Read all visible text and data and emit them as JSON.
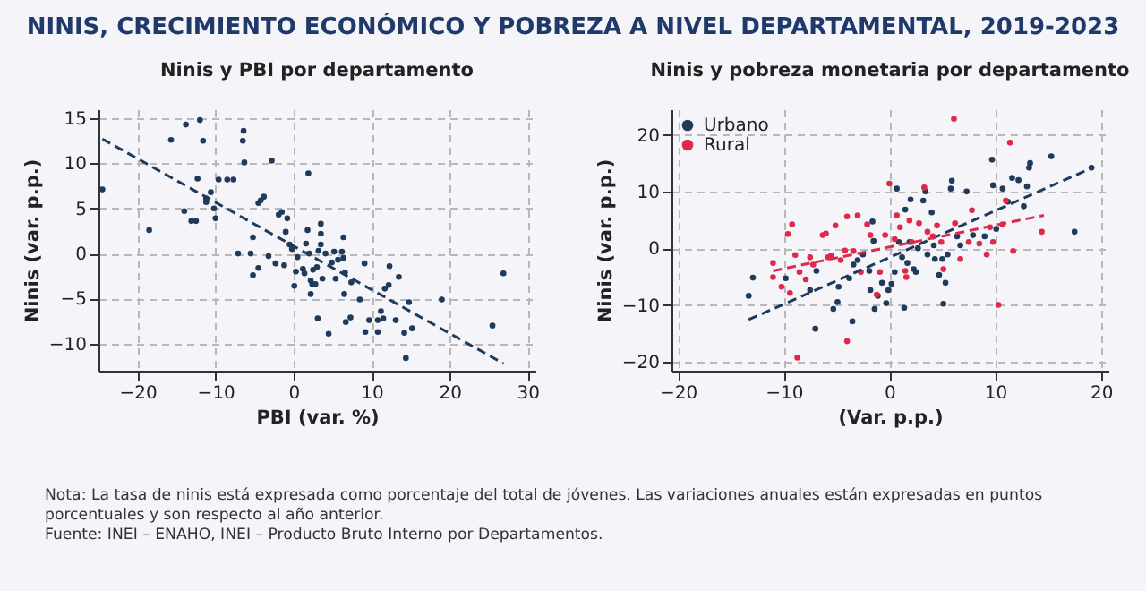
{
  "chart_data": [
    {
      "type": "other",
      "title": "NINIS, CRECIMIENTO ECONÓMICO Y POBREZA A NIVEL DEPARTAMENTAL, 2019-2023"
    },
    {
      "type": "scatter",
      "title": "Ninis y PBI por departamento",
      "xlabel": "PBI (var. %)",
      "ylabel": "Ninis (var. p.p.)",
      "xlim": [
        -25,
        31
      ],
      "ylim": [
        -13,
        16
      ],
      "xticks": [
        -20,
        -10,
        0,
        10,
        20,
        30
      ],
      "yticks": [
        -10,
        -5,
        0,
        5,
        10,
        15
      ],
      "grid": true,
      "legend": false,
      "series": [
        {
          "type": "scatter",
          "marker": "circle",
          "color": "#1f3a5a",
          "x": [
            -24.5,
            -18.5,
            -15.7,
            -13.8,
            -12.0,
            -11.6,
            -12.3,
            -14.0,
            -13.1,
            -12.5,
            -11.2,
            -11.2,
            -10.6,
            -10.2,
            -10.0,
            -9.6,
            -8.5,
            -7.7,
            -7.1,
            -6.4,
            -6.5,
            -6.3,
            -5.5,
            -5.2,
            -5.2,
            -4.5,
            -4.2,
            -3.8,
            -4.5,
            -3.2,
            -2.8,
            -2.3,
            -1.9,
            -1.5,
            -1.2,
            -0.8,
            -1.0,
            -0.5,
            -0.2,
            0.1,
            0.3,
            0.5,
            1.2,
            1.4,
            1.6,
            1.8,
            1.9,
            2.0,
            2.2,
            2.2,
            2.4,
            2.5,
            2.8,
            3.0,
            3.1,
            3.2,
            3.5,
            3.5,
            3.5,
            3.7,
            4.1,
            4.5,
            4.9,
            5.2,
            5.4,
            5.7,
            6.2,
            6.4,
            6.4,
            6.5,
            6.6,
            6.7,
            7.3,
            7.4,
            8.5,
            9.1,
            9.2,
            9.7,
            10.8,
            10.8,
            11.2,
            11.5,
            11.7,
            12.2,
            12.3,
            13.1,
            13.5,
            14.2,
            14.4,
            14.8,
            15.2,
            19.0,
            25.5,
            26.9
          ],
          "values": [
            7.1,
            2.6,
            12.6,
            14.3,
            14.8,
            12.5,
            8.3,
            4.7,
            3.6,
            3.6,
            6.1,
            5.7,
            6.8,
            5.0,
            3.9,
            8.2,
            8.2,
            8.2,
            0,
            13.6,
            12.5,
            10.1,
            0,
            1.8,
            -2.4,
            5.6,
            5.9,
            6.3,
            -1.6,
            -0.3,
            10.3,
            -1.1,
            4.3,
            4.6,
            -1.3,
            3.9,
            2.4,
            1.0,
            0.5,
            -3.6,
            -2.0,
            -0.4,
            -1.7,
            -2.2,
            1.1,
            2.6,
            8.9,
            0,
            -3.0,
            -4.5,
            -3.4,
            -1.8,
            -3.4,
            -1.5,
            -7.2,
            0.3,
            3.3,
            2.2,
            1.0,
            -2.8,
            0,
            -8.9,
            -1.0,
            0.2,
            -2.8,
            -0.7,
            0.2,
            1.8,
            -0.5,
            -4.5,
            -2.1,
            -7.6,
            -7.1,
            -3.2,
            -5.1,
            -1.1,
            -8.7,
            -7.4,
            -8.7,
            -7.4,
            -6.4,
            -7.2,
            -3.9,
            -3.5,
            -1.4,
            -7.4,
            -2.6,
            -8.8,
            -11.6,
            -5.4,
            -8.3,
            -5.1,
            -8.0,
            -2.2
          ]
        },
        {
          "type": "line",
          "marker": "none",
          "color": "#1f3a5a",
          "line_style": "dashed",
          "x": [
            -24.5,
            26.9
          ],
          "values": [
            12.7,
            -12.2
          ]
        }
      ]
    },
    {
      "type": "scatter",
      "title": "Ninis y pobreza monetaria por departamento",
      "xlabel": "(Var. p.p.)",
      "ylabel": "Ninis (var. p.p.)",
      "xlim": [
        -20.6,
        20.7
      ],
      "ylim": [
        -21.6,
        24.5
      ],
      "xticks": [
        -20,
        -10,
        0,
        10,
        20
      ],
      "yticks": [
        -20,
        -10,
        0,
        10,
        20
      ],
      "grid": true,
      "legend": "top left",
      "series": [
        {
          "type": "scatter",
          "marker": "circle",
          "name": "Urbano",
          "color": "#1f3a5a",
          "x": [
            -13.3,
            -12.9,
            -9.8,
            -7.0,
            -6.9,
            -7.5,
            -5.3,
            -4.9,
            -4.8,
            -3.5,
            -3.8,
            -3.4,
            -3.0,
            -2.5,
            -1.9,
            -1.8,
            -1.6,
            -1.5,
            -1.4,
            -1.1,
            -0.7,
            -0.3,
            -0.1,
            0.2,
            0.5,
            0.7,
            0.9,
            1.2,
            1.4,
            1.5,
            1.7,
            1.9,
            2.0,
            2.3,
            2.5,
            2.7,
            3.2,
            3.4,
            3.6,
            4.0,
            4.2,
            4.3,
            4.7,
            5.0,
            5.1,
            5.3,
            5.5,
            5.8,
            5.9,
            6.4,
            6.7,
            7.3,
            7.9,
            9.0,
            9.7,
            9.8,
            10.1,
            10.7,
            11.2,
            11.6,
            12.2,
            12.7,
            13.0,
            13.2,
            13.3,
            15.3,
            17.5,
            19.1
          ],
          "values": [
            -8.4,
            -5.2,
            -5.3,
            -14.2,
            -4.0,
            -7.4,
            -10.7,
            -9.5,
            -6.8,
            -12.9,
            -5.3,
            -2.9,
            -2.1,
            -1.1,
            -4.0,
            -7.4,
            4.7,
            1.3,
            -10.7,
            -8.4,
            -6.1,
            -9.7,
            -7.4,
            -6.3,
            -4.2,
            10.5,
            1.1,
            -1.6,
            -10.5,
            6.8,
            -2.6,
            1.1,
            8.6,
            -3.7,
            -4.2,
            0,
            8.4,
            10.0,
            -1.1,
            6.3,
            0.5,
            -1.9,
            -4.7,
            -1.9,
            -9.8,
            -6.1,
            -1.1,
            10.5,
            11.9,
            2.1,
            0.5,
            10.0,
            2.3,
            2.1,
            15.6,
            11.1,
            3.4,
            10.5,
            8.2,
            12.4,
            12.0,
            7.4,
            10.9,
            14.2,
            15.0,
            16.2,
            2.9,
            14.2
          ]
        },
        {
          "type": "scatter",
          "marker": "circle",
          "name": "Rural",
          "color": "#e0284b",
          "x": [
            -11.0,
            -11.0,
            -10.2,
            -9.6,
            -9.2,
            -9.4,
            -8.9,
            -8.7,
            -8.5,
            -7.9,
            -7.5,
            -7.2,
            -6.3,
            -6.0,
            -5.8,
            -5.5,
            -5.1,
            -4.6,
            -4.2,
            -4.0,
            -4.0,
            -3.4,
            -3.0,
            -2.7,
            -2.1,
            -1.8,
            -1.2,
            -0.9,
            -0.4,
            0,
            0.5,
            0.7,
            1.0,
            1.5,
            1.6,
            1.9,
            2.1,
            2.8,
            3.3,
            3.6,
            4.1,
            4.5,
            4.9,
            5.1,
            6.1,
            6.2,
            6.7,
            7.5,
            7.8,
            8.5,
            9.2,
            9.5,
            9.8,
            10.3,
            10.7,
            11.0,
            11.4,
            11.7,
            14.4
          ],
          "values": [
            -2.6,
            -5.1,
            -6.8,
            2.5,
            4.2,
            -7.9,
            -1.2,
            -19.3,
            -4.2,
            -5.5,
            -1.6,
            -2.9,
            2.3,
            2.6,
            -1.6,
            -1.3,
            4.0,
            -2.1,
            -0.4,
            5.6,
            -16.4,
            -0.5,
            5.8,
            -4.2,
            4.2,
            2.3,
            -8.2,
            -4.2,
            2.3,
            11.4,
            1.6,
            5.8,
            3.7,
            -4.0,
            -5.1,
            4.9,
            1.1,
            4.4,
            10.7,
            2.9,
            2.1,
            4.0,
            1.1,
            -3.7,
            22.8,
            4.4,
            -1.9,
            1.1,
            6.7,
            0.8,
            -1.1,
            3.7,
            1.1,
            -10.0,
            4.2,
            8.4,
            18.6,
            -0.5,
            2.9
          ]
        },
        {
          "type": "line",
          "marker": "none",
          "color": "#1f3a5a",
          "line_style": "dashed",
          "x": [
            -13.3,
            19.2
          ],
          "values": [
            -12.6,
            14.2
          ]
        },
        {
          "type": "line",
          "marker": "none",
          "color": "#e0284b",
          "line_style": "dashed",
          "x": [
            -11.0,
            14.6
          ],
          "values": [
            -4.0,
            5.8
          ]
        }
      ]
    },
    {
      "type": "other",
      "annotations": [
        "Nota: La tasa de ninis está expresada como porcentaje del total de jóvenes.  Las variaciones anuales están expresadas en puntos porcentuales y son respecto al año anterior.",
        "Fuente: INEI – ENAHO, INEI – Producto Bruto Interno por Departamentos."
      ]
    }
  ]
}
